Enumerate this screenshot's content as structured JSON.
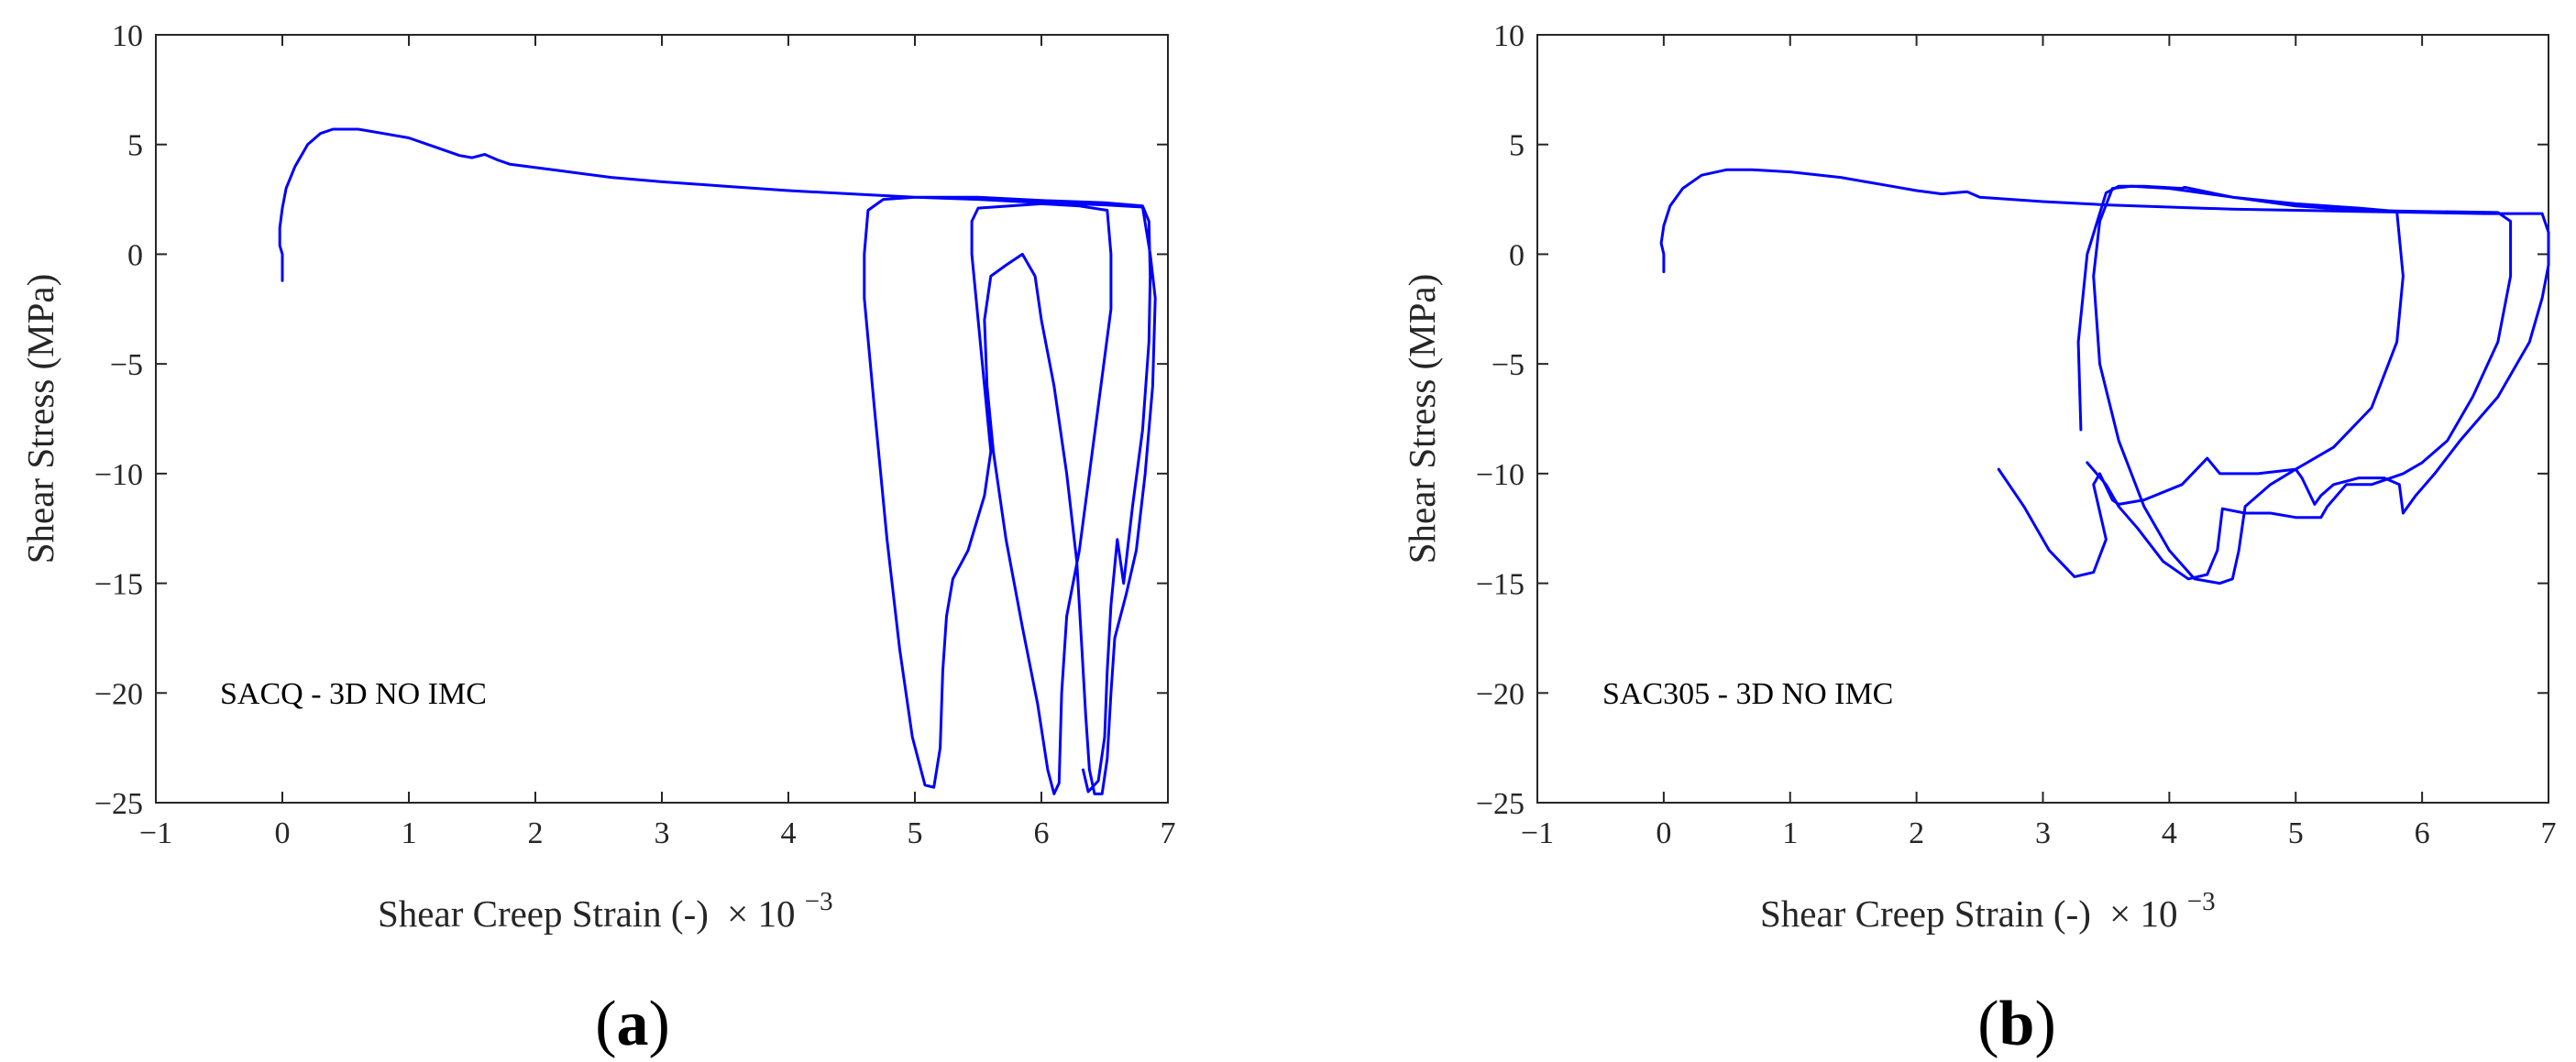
{
  "chart_data": [
    {
      "type": "line",
      "panel_label": "a",
      "annotation": "SACQ - 3D NO IMC",
      "xlabel": "Shear Creep Strain (-)",
      "xscale_base": "× 10",
      "xscale_exp": "−3",
      "ylabel": "Shear Stress (MPa)",
      "xlim": [
        -1,
        7
      ],
      "ylim": [
        -25,
        10
      ],
      "xticks": [
        -1,
        0,
        1,
        2,
        3,
        4,
        5,
        6,
        7
      ],
      "yticks": [
        10,
        5,
        0,
        -5,
        -10,
        -15,
        -20,
        -25
      ],
      "xtick_labels": [
        "−1",
        "0",
        "1",
        "2",
        "3",
        "4",
        "5",
        "6",
        "7"
      ],
      "ytick_labels": [
        "10",
        "5",
        "0",
        "−5",
        "−10",
        "−15",
        "−20",
        "−25"
      ],
      "series": [
        {
          "name": "SACQ",
          "color": "#0000ff",
          "points": [
            [
              0.0,
              -1.2
            ],
            [
              0.0,
              0.0
            ],
            [
              -0.02,
              0.4
            ],
            [
              -0.02,
              1.2
            ],
            [
              0.0,
              2.1
            ],
            [
              0.03,
              3.0
            ],
            [
              0.1,
              4.0
            ],
            [
              0.2,
              5.0
            ],
            [
              0.3,
              5.5
            ],
            [
              0.4,
              5.7
            ],
            [
              0.6,
              5.7
            ],
            [
              0.8,
              5.5
            ],
            [
              1.0,
              5.3
            ],
            [
              1.2,
              4.9
            ],
            [
              1.4,
              4.5
            ],
            [
              1.5,
              4.4
            ],
            [
              1.6,
              4.55
            ],
            [
              1.7,
              4.3
            ],
            [
              1.8,
              4.1
            ],
            [
              2.2,
              3.8
            ],
            [
              2.6,
              3.5
            ],
            [
              3.0,
              3.3
            ],
            [
              3.5,
              3.1
            ],
            [
              4.0,
              2.9
            ],
            [
              4.5,
              2.75
            ],
            [
              5.0,
              2.6
            ],
            [
              5.5,
              2.5
            ],
            [
              6.0,
              2.35
            ],
            [
              6.5,
              2.25
            ],
            [
              6.8,
              2.15
            ],
            [
              6.86,
              0.0
            ],
            [
              6.9,
              -2.0
            ],
            [
              6.88,
              -6.0
            ],
            [
              6.82,
              -10.0
            ],
            [
              6.75,
              -13.5
            ],
            [
              6.67,
              -15.5
            ],
            [
              6.58,
              -17.5
            ],
            [
              6.55,
              -20.0
            ],
            [
              6.52,
              -23.0
            ],
            [
              6.48,
              -24.6
            ],
            [
              6.42,
              -24.6
            ],
            [
              6.38,
              -23.5
            ],
            [
              6.35,
              -21.0
            ],
            [
              6.32,
              -18.0
            ],
            [
              6.28,
              -14.0
            ],
            [
              6.2,
              -10.0
            ],
            [
              6.1,
              -6.0
            ],
            [
              6.0,
              -3.0
            ],
            [
              5.95,
              -1.0
            ],
            [
              5.85,
              0.0
            ],
            [
              5.72,
              -0.5
            ],
            [
              5.6,
              -1.0
            ],
            [
              5.55,
              -3.0
            ],
            [
              5.57,
              -6.0
            ],
            [
              5.62,
              -9.0
            ],
            [
              5.72,
              -13.0
            ],
            [
              5.85,
              -17.0
            ],
            [
              5.97,
              -20.5
            ],
            [
              6.05,
              -23.5
            ],
            [
              6.1,
              -24.6
            ],
            [
              6.14,
              -24.1
            ],
            [
              6.16,
              -20.0
            ],
            [
              6.2,
              -16.5
            ],
            [
              6.3,
              -13.5
            ],
            [
              6.55,
              -2.5
            ],
            [
              6.55,
              0.0
            ],
            [
              6.52,
              2.0
            ],
            [
              6.3,
              2.2
            ],
            [
              6.0,
              2.3
            ],
            [
              5.5,
              2.1
            ],
            [
              5.45,
              1.5
            ],
            [
              5.45,
              0.0
            ],
            [
              5.55,
              -6.0
            ],
            [
              5.6,
              -9.0
            ],
            [
              5.55,
              -11.0
            ],
            [
              5.42,
              -13.5
            ],
            [
              5.3,
              -14.8
            ],
            [
              5.25,
              -16.5
            ],
            [
              5.22,
              -19.0
            ],
            [
              5.2,
              -22.5
            ],
            [
              5.15,
              -24.3
            ],
            [
              5.08,
              -24.2
            ],
            [
              4.98,
              -22.0
            ],
            [
              4.88,
              -18.0
            ],
            [
              4.78,
              -13.0
            ],
            [
              4.68,
              -7.0
            ],
            [
              4.6,
              -2.0
            ],
            [
              4.6,
              0.0
            ],
            [
              4.63,
              2.0
            ],
            [
              4.75,
              2.5
            ],
            [
              5.0,
              2.6
            ],
            [
              5.5,
              2.6
            ],
            [
              6.0,
              2.45
            ],
            [
              6.5,
              2.35
            ],
            [
              6.8,
              2.2
            ],
            [
              6.85,
              1.5
            ],
            [
              6.86,
              -1.0
            ],
            [
              6.85,
              -4.0
            ],
            [
              6.8,
              -8.0
            ],
            [
              6.72,
              -11.5
            ],
            [
              6.65,
              -15.0
            ],
            [
              6.6,
              -13.0
            ],
            [
              6.55,
              -16.0
            ],
            [
              6.52,
              -19.0
            ],
            [
              6.5,
              -22.0
            ],
            [
              6.45,
              -24.0
            ],
            [
              6.37,
              -24.5
            ],
            [
              6.33,
              -23.5
            ]
          ]
        }
      ]
    },
    {
      "type": "line",
      "panel_label": "b",
      "annotation": "SAC305 - 3D NO IMC",
      "xlabel": "Shear Creep Strain (-)",
      "xscale_base": "× 10",
      "xscale_exp": "−3",
      "ylabel": "Shear Stress (MPa)",
      "xlim": [
        -1,
        7
      ],
      "ylim": [
        -25,
        10
      ],
      "xticks": [
        -1,
        0,
        1,
        2,
        3,
        4,
        5,
        6,
        7
      ],
      "yticks": [
        10,
        5,
        0,
        -5,
        -10,
        -15,
        -20,
        -25
      ],
      "xtick_labels": [
        "−1",
        "0",
        "1",
        "2",
        "3",
        "4",
        "5",
        "6",
        "7"
      ],
      "ytick_labels": [
        "10",
        "5",
        "0",
        "−5",
        "−10",
        "−15",
        "−20",
        "−25"
      ],
      "series": [
        {
          "name": "SAC305",
          "color": "#0000ff",
          "points": [
            [
              0.0,
              -0.8
            ],
            [
              0.0,
              0.0
            ],
            [
              -0.02,
              0.5
            ],
            [
              0.0,
              1.3
            ],
            [
              0.05,
              2.2
            ],
            [
              0.15,
              3.0
            ],
            [
              0.3,
              3.6
            ],
            [
              0.5,
              3.85
            ],
            [
              0.7,
              3.85
            ],
            [
              1.0,
              3.75
            ],
            [
              1.4,
              3.5
            ],
            [
              1.8,
              3.1
            ],
            [
              2.0,
              2.9
            ],
            [
              2.2,
              2.75
            ],
            [
              2.3,
              2.8
            ],
            [
              2.4,
              2.85
            ],
            [
              2.5,
              2.6
            ],
            [
              3.0,
              2.4
            ],
            [
              3.5,
              2.25
            ],
            [
              4.0,
              2.15
            ],
            [
              4.5,
              2.05
            ],
            [
              5.0,
              2.0
            ],
            [
              5.5,
              1.95
            ],
            [
              6.0,
              1.9
            ],
            [
              6.5,
              1.85
            ],
            [
              6.95,
              1.85
            ],
            [
              7.0,
              1.0
            ],
            [
              7.0,
              -0.5
            ],
            [
              6.95,
              -2.0
            ],
            [
              6.85,
              -4.0
            ],
            [
              6.6,
              -6.5
            ],
            [
              6.3,
              -8.5
            ],
            [
              6.1,
              -10.0
            ],
            [
              5.95,
              -11.0
            ],
            [
              5.85,
              -11.8
            ],
            [
              5.82,
              -10.5
            ],
            [
              5.7,
              -10.2
            ],
            [
              5.5,
              -10.2
            ],
            [
              5.3,
              -10.5
            ],
            [
              5.2,
              -11.0
            ],
            [
              5.15,
              -11.4
            ],
            [
              5.05,
              -10.2
            ],
            [
              5.0,
              -9.8
            ],
            [
              4.8,
              -10.5
            ],
            [
              4.6,
              -11.5
            ],
            [
              4.55,
              -13.5
            ],
            [
              4.5,
              -14.8
            ],
            [
              4.4,
              -15.0
            ],
            [
              4.2,
              -14.8
            ],
            [
              4.0,
              -13.5
            ],
            [
              3.8,
              -11.5
            ],
            [
              3.6,
              -8.5
            ],
            [
              3.45,
              -5.0
            ],
            [
              3.4,
              -1.0
            ],
            [
              3.45,
              1.5
            ],
            [
              3.55,
              3.0
            ],
            [
              3.7,
              3.1
            ],
            [
              4.0,
              3.0
            ],
            [
              4.5,
              2.6
            ],
            [
              5.0,
              2.3
            ],
            [
              5.5,
              2.1
            ],
            [
              5.8,
              1.95
            ],
            [
              5.85,
              -1.0
            ],
            [
              5.8,
              -4.0
            ],
            [
              5.6,
              -7.0
            ],
            [
              5.3,
              -8.8
            ],
            [
              5.0,
              -9.8
            ],
            [
              4.7,
              -10.0
            ],
            [
              4.4,
              -10.0
            ],
            [
              4.3,
              -9.3
            ],
            [
              4.25,
              -9.6
            ],
            [
              4.1,
              -10.5
            ],
            [
              3.8,
              -11.2
            ],
            [
              3.6,
              -11.4
            ],
            [
              3.55,
              -11.2
            ],
            [
              3.45,
              -10.0
            ],
            [
              3.4,
              -10.5
            ],
            [
              3.5,
              -13.0
            ],
            [
              3.4,
              -14.5
            ],
            [
              3.25,
              -14.7
            ],
            [
              3.05,
              -13.5
            ],
            [
              2.85,
              -11.5
            ],
            [
              2.65,
              -9.8
            ]
          ],
          "points2": [
            [
              3.3,
              -8.0
            ],
            [
              3.28,
              -4.0
            ],
            [
              3.35,
              0.0
            ],
            [
              3.5,
              2.8
            ],
            [
              3.6,
              3.1
            ],
            [
              3.8,
              3.1
            ],
            [
              4.1,
              3.0
            ],
            [
              4.12,
              3.05
            ],
            [
              4.5,
              2.6
            ],
            [
              5.0,
              2.2
            ],
            [
              5.5,
              2.0
            ],
            [
              6.0,
              1.95
            ],
            [
              6.6,
              1.9
            ],
            [
              6.7,
              1.5
            ],
            [
              6.7,
              -1.0
            ],
            [
              6.6,
              -4.0
            ],
            [
              6.4,
              -6.5
            ],
            [
              6.2,
              -8.5
            ],
            [
              6.0,
              -9.5
            ],
            [
              5.85,
              -10.0
            ],
            [
              5.6,
              -10.5
            ],
            [
              5.4,
              -10.5
            ],
            [
              5.25,
              -11.5
            ],
            [
              5.2,
              -12.0
            ],
            [
              5.0,
              -12.0
            ],
            [
              4.8,
              -11.8
            ],
            [
              4.6,
              -11.8
            ],
            [
              4.42,
              -11.6
            ],
            [
              4.38,
              -13.5
            ],
            [
              4.3,
              -14.6
            ],
            [
              4.15,
              -14.8
            ],
            [
              3.95,
              -14.0
            ],
            [
              3.75,
              -12.5
            ],
            [
              3.6,
              -11.5
            ],
            [
              3.5,
              -10.5
            ],
            [
              3.35,
              -9.5
            ]
          ]
        }
      ]
    }
  ]
}
